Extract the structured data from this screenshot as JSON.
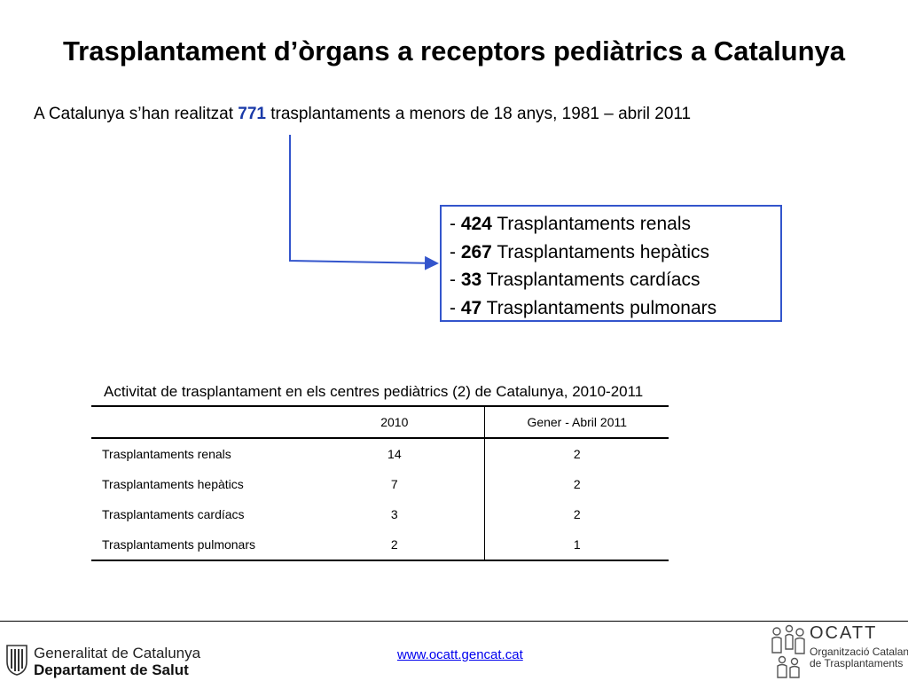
{
  "title": "Trasplantament d’òrgans a receptors pediàtrics a Catalunya",
  "subtitle": {
    "prefix": "A Catalunya s’han realitzat ",
    "count": "771",
    "suffix": " trasplantaments a menors de 18 anys, 1981 – abril 2011"
  },
  "breakdown": [
    {
      "dash": "- ",
      "count": "424",
      "label": " Trasplantaments renals"
    },
    {
      "dash": "- ",
      "count": "267",
      "label": " Trasplantaments hepàtics"
    },
    {
      "dash": "- ",
      "count": "33",
      "label": " Trasplantaments cardíacs"
    },
    {
      "dash": "- ",
      "count": "47",
      "label": " Trasplantaments pulmonars"
    }
  ],
  "table": {
    "caption": "Activitat de trasplantament en els centres pediàtrics (2) de Catalunya, 2010-2011",
    "headers": [
      "",
      "2010",
      "Gener - Abril 2011"
    ],
    "rows": [
      {
        "label": "Trasplantaments renals",
        "y2010": "14",
        "y2011": "2"
      },
      {
        "label": "Trasplantaments hepàtics",
        "y2010": "7",
        "y2011": "2"
      },
      {
        "label": "Trasplantaments cardíacs",
        "y2010": "3",
        "y2011": "2"
      },
      {
        "label": "Trasplantaments pulmonars",
        "y2010": "2",
        "y2011": "1"
      }
    ]
  },
  "footer": {
    "gov_name": "Generalitat de Catalunya",
    "gov_dept": "Departament de Salut",
    "website": "www.ocatt.gencat.cat",
    "ocatt_name": "OCATT",
    "ocatt_full_1": "Organització Catalana",
    "ocatt_full_2": "de Trasplantaments"
  },
  "colors": {
    "highlight": "#1a3aa8",
    "box_border": "#3355cc",
    "link": "#0000ee"
  }
}
